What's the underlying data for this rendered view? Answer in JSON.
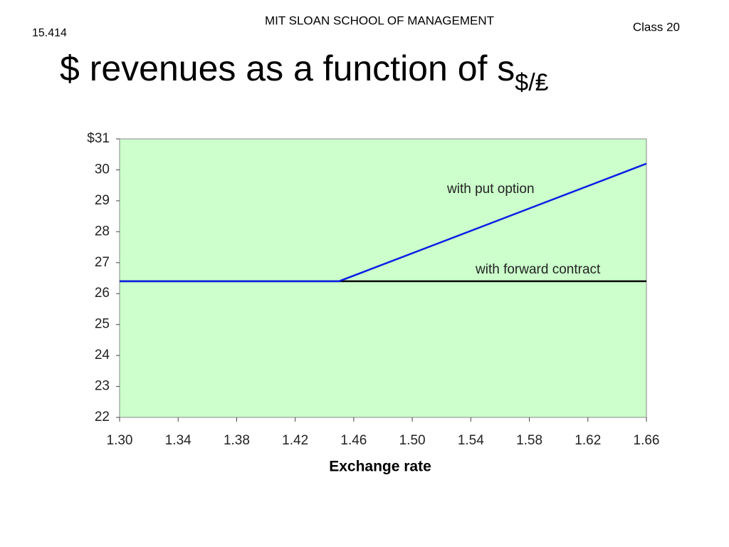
{
  "header": {
    "school": "MIT SLOAN SCHOOL OF MANAGEMENT",
    "course": "15.414",
    "session": "Class 20"
  },
  "chart_data": {
    "type": "line",
    "title": "$ revenues as a function of s",
    "title_subscript": "$/₤",
    "xlabel": "Exchange rate",
    "x": [
      1.3,
      1.45,
      1.66
    ],
    "series": [
      {
        "name": "with forward contract",
        "color": "#000000",
        "values": [
          26.4,
          26.4,
          26.4
        ]
      },
      {
        "name": "with put option",
        "color": "#0a1ee6",
        "values": [
          26.4,
          26.4,
          30.2
        ]
      }
    ],
    "xlim": [
      1.3,
      1.66
    ],
    "xticks": [
      {
        "value": 1.3,
        "label": "1.30"
      },
      1.34,
      1.38,
      1.42,
      1.46,
      {
        "value": 1.5,
        "label": "1.50"
      },
      1.54,
      1.58,
      1.62,
      1.66
    ],
    "ylim": [
      22,
      31
    ],
    "yticks": [
      22,
      23,
      24,
      25,
      26,
      27,
      28,
      29,
      30,
      {
        "value": 31,
        "label": "$31"
      }
    ],
    "grid": false,
    "plot_background": "#ccffcc"
  }
}
